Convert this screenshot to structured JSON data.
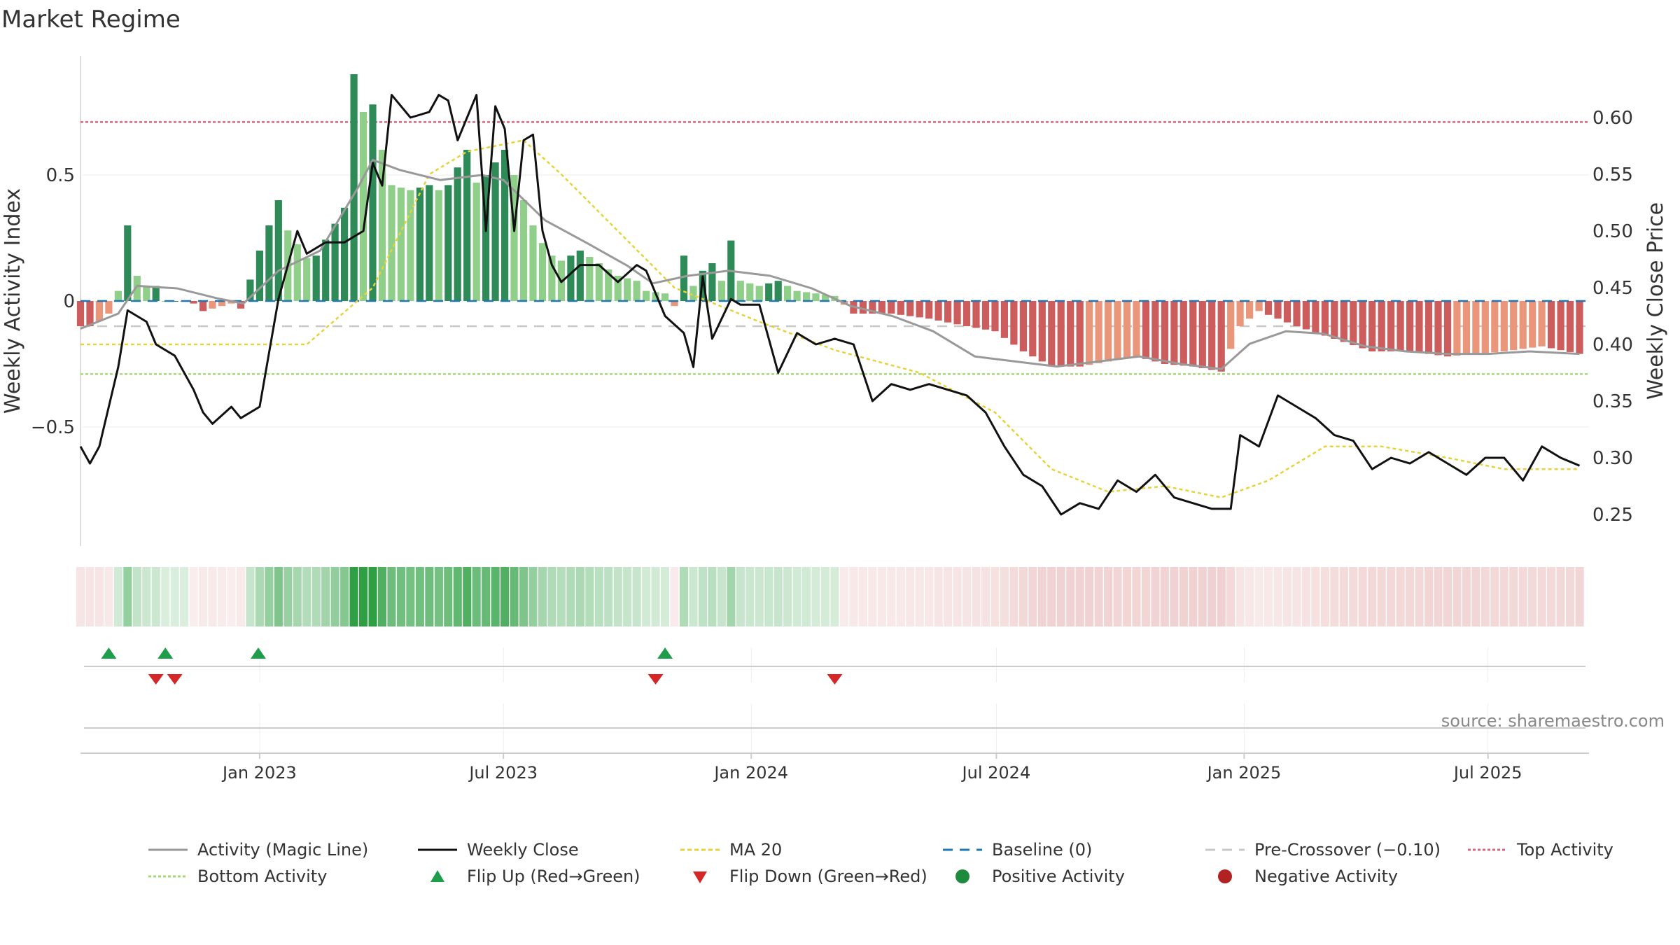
{
  "title": "Market Regime",
  "source": "source: sharemaestro.com",
  "colors": {
    "green_dark": "#2e8b57",
    "green_light": "#8fcf8a",
    "red_dark": "#cd5c5c",
    "red_light": "#e9967a",
    "close": "#111111",
    "ma": "#e6d23a",
    "activity": "#999999",
    "baseline": "#1f77b4",
    "precross": "#c8c8c8",
    "top": "#d9667f",
    "bottom": "#a7d776",
    "flip_up": "#1e9e4a",
    "flip_down": "#d62728"
  },
  "chart_data": {
    "type": "bar",
    "left_axis": {
      "label": "Weekly Activity Index",
      "ticks": [
        0.5,
        0,
        -0.5
      ],
      "tick_labels": [
        "0.5",
        "0",
        "−0.5"
      ],
      "range": [
        -0.97,
        0.97
      ]
    },
    "right_axis": {
      "label": "Weekly Close Price",
      "ticks": [
        0.25,
        0.3,
        0.35,
        0.4,
        0.45,
        0.5,
        0.55,
        0.6
      ],
      "tick_labels": [
        "0.25",
        "0.30",
        "0.35",
        "0.40",
        "0.45",
        "0.50",
        "0.55",
        "0.60"
      ],
      "range": [
        0.22,
        0.65
      ]
    },
    "x_axis": {
      "labels": [
        "Jan 2023",
        "Jul 2023",
        "Jan 2024",
        "Jul 2024",
        "Jan 2025",
        "Jul 2025"
      ],
      "tick_dates": [
        "2023-01-01",
        "2023-07-01",
        "2024-01-01",
        "2024-07-01",
        "2025-01-01",
        "2025-07-01"
      ],
      "range": [
        "2022-08-21",
        "2025-09-14"
      ]
    },
    "reference_lines": {
      "baseline": 0,
      "pre_crossover": -0.1,
      "top_activity": 0.71,
      "bottom_activity": -0.29
    },
    "series": [
      {
        "name": "Activity (Magic Line)",
        "keypoints": [
          [
            "2022-08-21",
            -0.11
          ],
          [
            "2022-09-18",
            -0.05
          ],
          [
            "2022-10-02",
            0.06
          ],
          [
            "2022-11-01",
            0.05
          ],
          [
            "2022-12-01",
            0.01
          ],
          [
            "2022-12-20",
            -0.01
          ],
          [
            "2023-01-15",
            0.12
          ],
          [
            "2023-02-15",
            0.2
          ],
          [
            "2023-03-15",
            0.45
          ],
          [
            "2023-03-26",
            0.56
          ],
          [
            "2023-04-15",
            0.52
          ],
          [
            "2023-05-15",
            0.48
          ],
          [
            "2023-06-15",
            0.5
          ],
          [
            "2023-07-01",
            0.48
          ],
          [
            "2023-08-01",
            0.32
          ],
          [
            "2023-09-01",
            0.23
          ],
          [
            "2023-10-01",
            0.14
          ],
          [
            "2023-10-20",
            0.07
          ],
          [
            "2023-11-15",
            0.1
          ],
          [
            "2023-12-15",
            0.12
          ],
          [
            "2024-01-15",
            0.1
          ],
          [
            "2024-02-15",
            0.05
          ],
          [
            "2024-03-15",
            -0.02
          ],
          [
            "2024-04-15",
            -0.06
          ],
          [
            "2024-05-15",
            -0.12
          ],
          [
            "2024-06-15",
            -0.22
          ],
          [
            "2024-07-15",
            -0.24
          ],
          [
            "2024-08-15",
            -0.26
          ],
          [
            "2024-09-15",
            -0.24
          ],
          [
            "2024-10-15",
            -0.22
          ],
          [
            "2024-11-15",
            -0.25
          ],
          [
            "2024-12-15",
            -0.27
          ],
          [
            "2025-01-05",
            -0.17
          ],
          [
            "2025-02-01",
            -0.12
          ],
          [
            "2025-03-01",
            -0.13
          ],
          [
            "2025-04-01",
            -0.18
          ],
          [
            "2025-05-01",
            -0.2
          ],
          [
            "2025-06-01",
            -0.21
          ],
          [
            "2025-07-01",
            -0.21
          ],
          [
            "2025-08-01",
            -0.2
          ],
          [
            "2025-09-07",
            -0.21
          ]
        ]
      },
      {
        "name": "Weekly Close",
        "axis": "right",
        "keypoints": [
          [
            "2022-08-21",
            0.31
          ],
          [
            "2022-08-28",
            0.295
          ],
          [
            "2022-09-04",
            0.31
          ],
          [
            "2022-09-18",
            0.38
          ],
          [
            "2022-09-25",
            0.43
          ],
          [
            "2022-10-09",
            0.42
          ],
          [
            "2022-10-16",
            0.4
          ],
          [
            "2022-10-30",
            0.39
          ],
          [
            "2022-11-13",
            0.36
          ],
          [
            "2022-11-20",
            0.34
          ],
          [
            "2022-11-27",
            0.33
          ],
          [
            "2022-12-11",
            0.345
          ],
          [
            "2022-12-18",
            0.335
          ],
          [
            "2023-01-01",
            0.345
          ],
          [
            "2023-01-15",
            0.44
          ],
          [
            "2023-01-29",
            0.5
          ],
          [
            "2023-02-05",
            0.48
          ],
          [
            "2023-02-19",
            0.49
          ],
          [
            "2023-03-05",
            0.49
          ],
          [
            "2023-03-19",
            0.5
          ],
          [
            "2023-03-26",
            0.56
          ],
          [
            "2023-04-02",
            0.54
          ],
          [
            "2023-04-09",
            0.62
          ],
          [
            "2023-04-23",
            0.6
          ],
          [
            "2023-05-07",
            0.605
          ],
          [
            "2023-05-14",
            0.62
          ],
          [
            "2023-05-21",
            0.615
          ],
          [
            "2023-05-28",
            0.58
          ],
          [
            "2023-06-04",
            0.6
          ],
          [
            "2023-06-11",
            0.62
          ],
          [
            "2023-06-18",
            0.5
          ],
          [
            "2023-06-25",
            0.61
          ],
          [
            "2023-07-02",
            0.59
          ],
          [
            "2023-07-09",
            0.5
          ],
          [
            "2023-07-16",
            0.58
          ],
          [
            "2023-07-23",
            0.585
          ],
          [
            "2023-07-30",
            0.5
          ],
          [
            "2023-08-06",
            0.47
          ],
          [
            "2023-08-13",
            0.455
          ],
          [
            "2023-08-27",
            0.47
          ],
          [
            "2023-09-10",
            0.47
          ],
          [
            "2023-09-24",
            0.455
          ],
          [
            "2023-10-08",
            0.47
          ],
          [
            "2023-10-15",
            0.465
          ],
          [
            "2023-10-29",
            0.425
          ],
          [
            "2023-11-12",
            0.41
          ],
          [
            "2023-11-19",
            0.38
          ],
          [
            "2023-11-26",
            0.46
          ],
          [
            "2023-12-03",
            0.405
          ],
          [
            "2023-12-17",
            0.44
          ],
          [
            "2023-12-24",
            0.435
          ],
          [
            "2024-01-07",
            0.435
          ],
          [
            "2024-01-21",
            0.375
          ],
          [
            "2024-02-04",
            0.41
          ],
          [
            "2024-02-18",
            0.4
          ],
          [
            "2024-03-03",
            0.405
          ],
          [
            "2024-03-17",
            0.4
          ],
          [
            "2024-03-31",
            0.35
          ],
          [
            "2024-04-14",
            0.365
          ],
          [
            "2024-04-28",
            0.36
          ],
          [
            "2024-05-12",
            0.365
          ],
          [
            "2024-05-26",
            0.36
          ],
          [
            "2024-06-09",
            0.355
          ],
          [
            "2024-06-23",
            0.34
          ],
          [
            "2024-07-07",
            0.31
          ],
          [
            "2024-07-21",
            0.285
          ],
          [
            "2024-08-04",
            0.275
          ],
          [
            "2024-08-18",
            0.25
          ],
          [
            "2024-09-01",
            0.26
          ],
          [
            "2024-09-15",
            0.255
          ],
          [
            "2024-09-29",
            0.28
          ],
          [
            "2024-10-13",
            0.27
          ],
          [
            "2024-10-27",
            0.285
          ],
          [
            "2024-11-10",
            0.265
          ],
          [
            "2024-11-24",
            0.26
          ],
          [
            "2024-12-08",
            0.255
          ],
          [
            "2024-12-22",
            0.255
          ],
          [
            "2024-12-29",
            0.32
          ],
          [
            "2025-01-12",
            0.31
          ],
          [
            "2025-01-26",
            0.355
          ],
          [
            "2025-02-09",
            0.345
          ],
          [
            "2025-02-23",
            0.335
          ],
          [
            "2025-03-09",
            0.32
          ],
          [
            "2025-03-23",
            0.315
          ],
          [
            "2025-04-06",
            0.29
          ],
          [
            "2025-04-20",
            0.3
          ],
          [
            "2025-05-04",
            0.295
          ],
          [
            "2025-05-18",
            0.305
          ],
          [
            "2025-06-01",
            0.295
          ],
          [
            "2025-06-15",
            0.285
          ],
          [
            "2025-06-29",
            0.3
          ],
          [
            "2025-07-13",
            0.3
          ],
          [
            "2025-07-27",
            0.28
          ],
          [
            "2025-08-10",
            0.31
          ],
          [
            "2025-08-24",
            0.3
          ],
          [
            "2025-09-07",
            0.293
          ]
        ]
      },
      {
        "name": "MA 20",
        "axis": "right",
        "keypoints": [
          [
            "2022-08-21",
            0.4
          ],
          [
            "2023-02-05",
            0.4
          ],
          [
            "2023-03-26",
            0.45
          ],
          [
            "2023-05-07",
            0.55
          ],
          [
            "2023-06-04",
            0.57
          ],
          [
            "2023-07-16",
            0.58
          ],
          [
            "2023-08-13",
            0.55
          ],
          [
            "2023-09-24",
            0.5
          ],
          [
            "2023-11-05",
            0.45
          ],
          [
            "2024-01-07",
            0.42
          ],
          [
            "2024-03-03",
            0.395
          ],
          [
            "2024-05-05",
            0.375
          ],
          [
            "2024-06-30",
            0.34
          ],
          [
            "2024-08-11",
            0.29
          ],
          [
            "2024-09-22",
            0.27
          ],
          [
            "2024-11-03",
            0.275
          ],
          [
            "2024-12-15",
            0.265
          ],
          [
            "2025-01-19",
            0.28
          ],
          [
            "2025-03-02",
            0.31
          ],
          [
            "2025-04-13",
            0.31
          ],
          [
            "2025-06-01",
            0.3
          ],
          [
            "2025-07-13",
            0.29
          ],
          [
            "2025-09-07",
            0.29
          ]
        ]
      }
    ],
    "bars": {
      "dark_positions": [
        0.0,
        0.7,
        0.9,
        0.6,
        0.3,
        0.6,
        0.4,
        0.3,
        0.5,
        0.6,
        0.2
      ],
      "note": "weekly activity bars, green above 0, red below 0"
    },
    "activity_keypoints": [
      [
        "2022-08-21",
        -0.1
      ],
      [
        "2022-08-28",
        -0.1
      ],
      [
        "2022-09-04",
        -0.08
      ],
      [
        "2022-09-11",
        -0.05
      ],
      [
        "2022-09-18",
        0.04
      ],
      [
        "2022-09-25",
        0.3
      ],
      [
        "2022-10-02",
        0.1
      ],
      [
        "2022-10-09",
        0.06
      ],
      [
        "2022-10-16",
        0.06
      ],
      [
        "2022-10-23",
        0.0
      ],
      [
        "2022-11-06",
        0.0
      ],
      [
        "2022-11-13",
        -0.01
      ],
      [
        "2022-11-20",
        -0.04
      ],
      [
        "2022-12-04",
        -0.02
      ],
      [
        "2022-12-11",
        -0.01
      ],
      [
        "2022-12-18",
        -0.03
      ],
      [
        "2023-01-01",
        0.2
      ],
      [
        "2023-01-15",
        0.4
      ],
      [
        "2023-01-22",
        0.28
      ],
      [
        "2023-02-05",
        0.17
      ],
      [
        "2023-02-12",
        0.18
      ],
      [
        "2023-03-05",
        0.37
      ],
      [
        "2023-03-12",
        0.9
      ],
      [
        "2023-03-19",
        0.75
      ],
      [
        "2023-03-26",
        0.78
      ],
      [
        "2023-04-02",
        0.6
      ],
      [
        "2023-04-09",
        0.46
      ],
      [
        "2023-04-23",
        0.44
      ],
      [
        "2023-05-07",
        0.46
      ],
      [
        "2023-05-14",
        0.44
      ],
      [
        "2023-05-21",
        0.46
      ],
      [
        "2023-06-04",
        0.6
      ],
      [
        "2023-06-11",
        0.47
      ],
      [
        "2023-06-18",
        0.5
      ],
      [
        "2023-07-02",
        0.6
      ],
      [
        "2023-07-09",
        0.5
      ],
      [
        "2023-07-16",
        0.4
      ],
      [
        "2023-07-23",
        0.3
      ],
      [
        "2023-07-30",
        0.23
      ],
      [
        "2023-08-06",
        0.18
      ],
      [
        "2023-08-13",
        0.16
      ],
      [
        "2023-08-27",
        0.2
      ],
      [
        "2023-09-10",
        0.15
      ],
      [
        "2023-09-24",
        0.1
      ],
      [
        "2023-10-08",
        0.08
      ],
      [
        "2023-10-15",
        0.04
      ],
      [
        "2023-10-29",
        0.03
      ],
      [
        "2023-11-05",
        -0.02
      ],
      [
        "2023-11-12",
        0.18
      ],
      [
        "2023-11-19",
        0.06
      ],
      [
        "2023-11-26",
        0.12
      ],
      [
        "2023-12-03",
        0.15
      ],
      [
        "2023-12-10",
        0.08
      ],
      [
        "2023-12-17",
        0.24
      ],
      [
        "2023-12-24",
        0.08
      ],
      [
        "2024-01-07",
        0.06
      ],
      [
        "2024-01-21",
        0.08
      ],
      [
        "2024-02-04",
        0.04
      ],
      [
        "2024-02-18",
        0.03
      ],
      [
        "2024-03-03",
        0.02
      ],
      [
        "2024-03-17",
        -0.05
      ],
      [
        "2024-04-14",
        -0.05
      ],
      [
        "2024-05-12",
        -0.07
      ],
      [
        "2024-06-09",
        -0.1
      ],
      [
        "2024-06-30",
        -0.12
      ],
      [
        "2024-07-21",
        -0.2
      ],
      [
        "2024-08-11",
        -0.26
      ],
      [
        "2024-09-01",
        -0.26
      ],
      [
        "2024-09-22",
        -0.24
      ],
      [
        "2024-10-13",
        -0.22
      ],
      [
        "2024-11-03",
        -0.25
      ],
      [
        "2024-11-24",
        -0.26
      ],
      [
        "2024-12-15",
        -0.28
      ],
      [
        "2024-12-29",
        -0.1
      ],
      [
        "2025-01-12",
        -0.04
      ],
      [
        "2025-02-09",
        -0.1
      ],
      [
        "2025-03-09",
        -0.15
      ],
      [
        "2025-04-06",
        -0.2
      ],
      [
        "2025-05-04",
        -0.2
      ],
      [
        "2025-06-01",
        -0.22
      ],
      [
        "2025-07-13",
        -0.2
      ],
      [
        "2025-08-10",
        -0.18
      ],
      [
        "2025-09-07",
        -0.21
      ]
    ],
    "flip_up_dates": [
      "2022-09-11",
      "2022-10-23",
      "2022-12-31",
      "2023-10-29"
    ],
    "flip_down_dates": [
      "2022-10-16",
      "2022-10-30",
      "2023-10-22",
      "2024-03-03"
    ],
    "legend": [
      "Activity (Magic Line)",
      "Weekly Close",
      "MA 20",
      "Baseline (0)",
      "Pre-Crossover (−0.10)",
      "Top Activity",
      "Bottom Activity",
      "Flip Up (Red→Green)",
      "Flip Down (Green→Red)",
      "Positive Activity",
      "Negative Activity"
    ]
  }
}
